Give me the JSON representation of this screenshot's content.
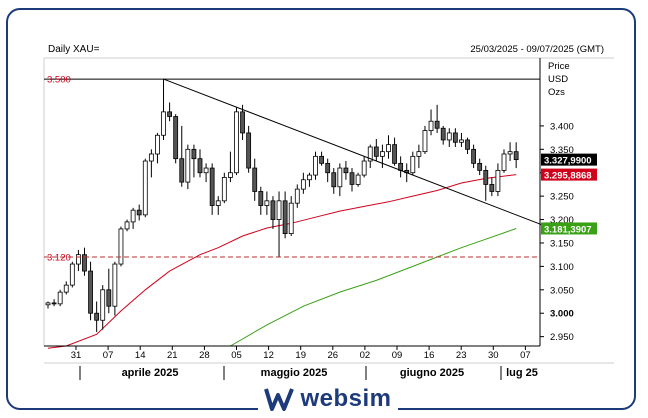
{
  "chart_data": {
    "type": "candlestick",
    "title": "Daily XAU=",
    "date_range": "25/03/2025 - 09/07/2025 (GMT)",
    "y_axis_title": [
      "Price",
      "USD",
      "Ozs"
    ],
    "ylim": [
      2930,
      3545
    ],
    "y_ticks": [
      2950,
      3000,
      3050,
      3100,
      3150,
      3200,
      3250,
      3300,
      3350,
      3400
    ],
    "y_tick_labels": [
      "2.950",
      "3.000",
      "3.050",
      "3.100",
      "3.150",
      "3.200",
      "3.250",
      "3.300",
      "3.350",
      "3.400"
    ],
    "x_tick_labels": [
      "31",
      "07",
      "14",
      "21",
      "28",
      "05",
      "12",
      "19",
      "26",
      "02",
      "09",
      "16",
      "23",
      "30",
      "07"
    ],
    "month_labels": [
      "aprile 2025",
      "maggio 2025",
      "giugno 2025",
      "lug 25"
    ],
    "candles": [
      [
        3018,
        3025,
        3010,
        3022
      ],
      [
        3022,
        3030,
        3015,
        3020
      ],
      [
        3020,
        3050,
        3015,
        3045
      ],
      [
        3045,
        3068,
        3040,
        3060
      ],
      [
        3060,
        3110,
        3055,
        3105
      ],
      [
        3105,
        3135,
        3090,
        3125
      ],
      [
        3125,
        3140,
        3080,
        3090
      ],
      [
        3090,
        3110,
        2985,
        3000
      ],
      [
        3000,
        3025,
        2960,
        2985
      ],
      [
        2985,
        3060,
        2965,
        3050
      ],
      [
        3050,
        3095,
        3000,
        3015
      ],
      [
        3015,
        3110,
        2995,
        3105
      ],
      [
        3105,
        3185,
        3100,
        3180
      ],
      [
        3180,
        3200,
        3175,
        3195
      ],
      [
        3195,
        3225,
        3180,
        3220
      ],
      [
        3220,
        3232,
        3198,
        3210
      ],
      [
        3210,
        3330,
        3205,
        3325
      ],
      [
        3325,
        3350,
        3290,
        3340
      ],
      [
        3340,
        3385,
        3320,
        3380
      ],
      [
        3380,
        3500,
        3370,
        3430
      ],
      [
        3430,
        3450,
        3410,
        3420
      ],
      [
        3420,
        3425,
        3320,
        3330
      ],
      [
        3330,
        3400,
        3270,
        3280
      ],
      [
        3280,
        3360,
        3265,
        3350
      ],
      [
        3350,
        3360,
        3290,
        3330
      ],
      [
        3330,
        3350,
        3290,
        3300
      ],
      [
        3300,
        3320,
        3280,
        3310
      ],
      [
        3310,
        3320,
        3210,
        3230
      ],
      [
        3230,
        3250,
        3210,
        3240
      ],
      [
        3240,
        3300,
        3235,
        3290
      ],
      [
        3290,
        3345,
        3280,
        3300
      ],
      [
        3300,
        3440,
        3295,
        3430
      ],
      [
        3430,
        3445,
        3370,
        3385
      ],
      [
        3385,
        3400,
        3300,
        3310
      ],
      [
        3310,
        3330,
        3240,
        3260
      ],
      [
        3260,
        3270,
        3210,
        3230
      ],
      [
        3230,
        3260,
        3210,
        3240
      ],
      [
        3240,
        3250,
        3180,
        3200
      ],
      [
        3200,
        3260,
        3120,
        3240
      ],
      [
        3240,
        3260,
        3160,
        3170
      ],
      [
        3170,
        3250,
        3165,
        3235
      ],
      [
        3235,
        3275,
        3225,
        3265
      ],
      [
        3265,
        3300,
        3255,
        3285
      ],
      [
        3285,
        3300,
        3270,
        3295
      ],
      [
        3295,
        3345,
        3285,
        3335
      ],
      [
        3335,
        3345,
        3315,
        3320
      ],
      [
        3320,
        3330,
        3280,
        3300
      ],
      [
        3300,
        3310,
        3255,
        3270
      ],
      [
        3270,
        3320,
        3250,
        3310
      ],
      [
        3310,
        3325,
        3285,
        3300
      ],
      [
        3300,
        3310,
        3260,
        3275
      ],
      [
        3275,
        3300,
        3270,
        3295
      ],
      [
        3295,
        3335,
        3290,
        3325
      ],
      [
        3325,
        3360,
        3310,
        3355
      ],
      [
        3355,
        3372,
        3325,
        3335
      ],
      [
        3335,
        3360,
        3310,
        3345
      ],
      [
        3345,
        3380,
        3330,
        3360
      ],
      [
        3360,
        3375,
        3315,
        3320
      ],
      [
        3320,
        3335,
        3290,
        3305
      ],
      [
        3305,
        3320,
        3280,
        3300
      ],
      [
        3300,
        3345,
        3295,
        3335
      ],
      [
        3335,
        3360,
        3310,
        3345
      ],
      [
        3345,
        3400,
        3340,
        3390
      ],
      [
        3390,
        3435,
        3380,
        3410
      ],
      [
        3410,
        3445,
        3385,
        3395
      ],
      [
        3395,
        3400,
        3360,
        3370
      ],
      [
        3370,
        3395,
        3355,
        3385
      ],
      [
        3385,
        3395,
        3355,
        3365
      ],
      [
        3365,
        3385,
        3355,
        3370
      ],
      [
        3370,
        3375,
        3340,
        3350
      ],
      [
        3350,
        3360,
        3310,
        3320
      ],
      [
        3320,
        3330,
        3295,
        3305
      ],
      [
        3305,
        3315,
        3240,
        3275
      ],
      [
        3275,
        3290,
        3250,
        3260
      ],
      [
        3260,
        3320,
        3250,
        3305
      ],
      [
        3305,
        3350,
        3300,
        3340
      ],
      [
        3340,
        3365,
        3325,
        3345
      ],
      [
        3345,
        3365,
        3310,
        3328
      ]
    ],
    "moving_averages": [
      {
        "color": "#d0021b",
        "last_value_label": "3.295,8868",
        "points": [
          [
            0,
            2925
          ],
          [
            3,
            2930
          ],
          [
            8,
            2955
          ],
          [
            12,
            3005
          ],
          [
            16,
            3050
          ],
          [
            20,
            3090
          ],
          [
            25,
            3125
          ],
          [
            28,
            3140
          ],
          [
            32,
            3165
          ],
          [
            36,
            3182
          ],
          [
            40,
            3192
          ],
          [
            44,
            3205
          ],
          [
            48,
            3218
          ],
          [
            52,
            3228
          ],
          [
            56,
            3238
          ],
          [
            60,
            3250
          ],
          [
            64,
            3262
          ],
          [
            68,
            3278
          ],
          [
            72,
            3288
          ],
          [
            77,
            3296
          ]
        ]
      },
      {
        "color": "#3aa116",
        "last_value_label": "3.181,3907",
        "points": [
          [
            30,
            2930
          ],
          [
            36,
            2975
          ],
          [
            42,
            3015
          ],
          [
            48,
            3045
          ],
          [
            54,
            3070
          ],
          [
            60,
            3100
          ],
          [
            64,
            3120
          ],
          [
            68,
            3140
          ],
          [
            72,
            3158
          ],
          [
            77,
            3181
          ]
        ]
      }
    ],
    "current_price_label": "3.327,9900",
    "horizontal_lines": [
      {
        "value": 3500,
        "label": "3.500",
        "style": "solid",
        "color": "#000000"
      },
      {
        "value": 3120,
        "label": "3.120",
        "style": "dashed",
        "color": "#b83232"
      }
    ],
    "trendline": {
      "from": [
        19,
        3500
      ],
      "to": [
        82,
        3185
      ]
    }
  },
  "branding": {
    "logo_text": "websim"
  }
}
